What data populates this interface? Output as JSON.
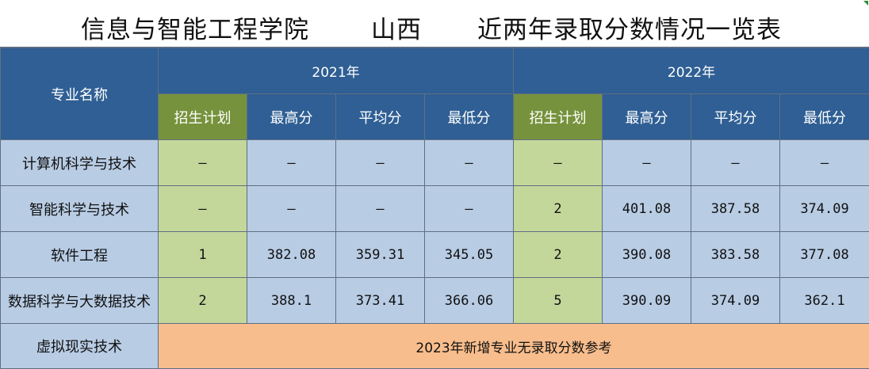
{
  "title": {
    "school": "信息与智能工程学院",
    "province": "山西",
    "subject": "近两年录取分数情况一览表"
  },
  "header": {
    "major_col": "专业名称",
    "years": [
      "2021年",
      "2022年"
    ],
    "sub_cols": [
      "招生计划",
      "最高分",
      "平均分",
      "最低分"
    ]
  },
  "rows": [
    {
      "name": "计算机科学与技术",
      "y2021": [
        "–",
        "–",
        "–",
        "–"
      ],
      "y2022": [
        "–",
        "–",
        "–",
        "–"
      ]
    },
    {
      "name": "智能科学与技术",
      "y2021": [
        "–",
        "–",
        "–",
        "–"
      ],
      "y2022": [
        "2",
        "401.08",
        "387.58",
        "374.09"
      ]
    },
    {
      "name": "软件工程",
      "y2021": [
        "1",
        "382.08",
        "359.31",
        "345.05"
      ],
      "y2022": [
        "2",
        "390.08",
        "383.58",
        "377.08"
      ]
    },
    {
      "name": "数据科学与大数据技术",
      "y2021": [
        "2",
        "388.1",
        "373.41",
        "366.06"
      ],
      "y2022": [
        "5",
        "390.09",
        "374.09",
        "362.1"
      ]
    }
  ],
  "last_row": {
    "name": "虚拟现实技术",
    "note": "2023年新增专业无录取分数参考"
  }
}
